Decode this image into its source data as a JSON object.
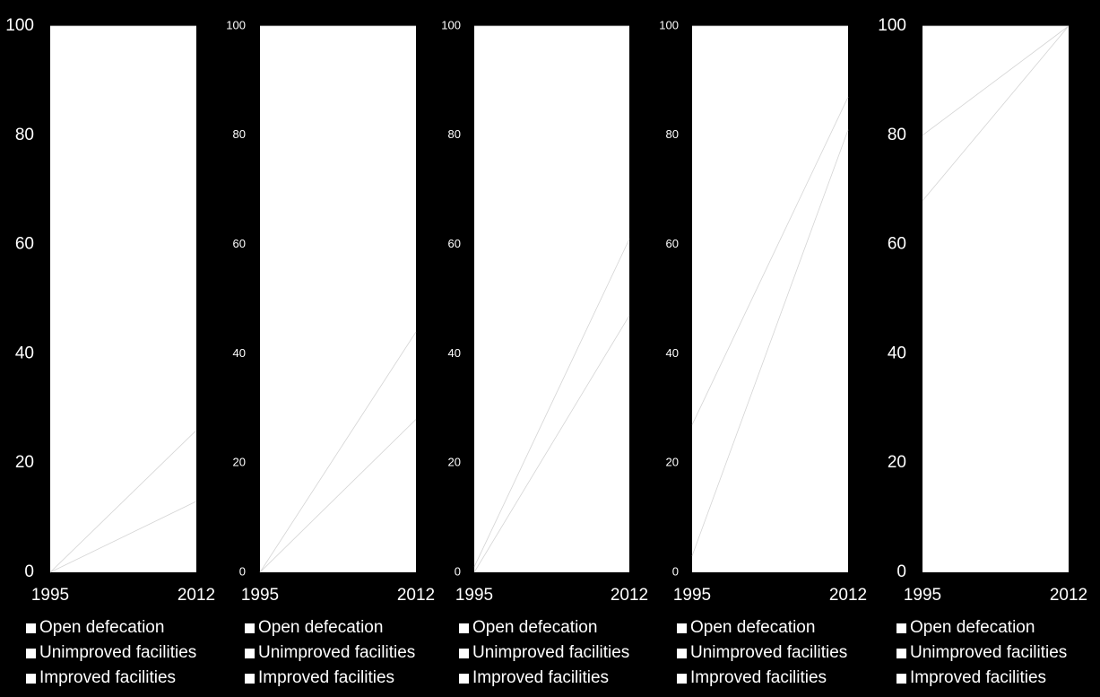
{
  "chart_data": [
    {
      "type": "area",
      "x": [
        "1995",
        "2012"
      ],
      "ylim": [
        0,
        100
      ],
      "yticks": [
        "0",
        "20",
        "40",
        "60",
        "80",
        "100"
      ],
      "series": [
        {
          "name": "Open defecation",
          "values": [
            0,
            13
          ]
        },
        {
          "name": "Unimproved facilities",
          "values": [
            0,
            26
          ]
        },
        {
          "name": "Improved facilities",
          "values": [
            100,
            100
          ]
        }
      ]
    },
    {
      "type": "area",
      "x": [
        "1995",
        "2012"
      ],
      "ylim": [
        0,
        100
      ],
      "yticks": [
        "0",
        "20",
        "40",
        "60",
        "80",
        "100"
      ],
      "series": [
        {
          "name": "Open defecation",
          "values": [
            0,
            28
          ]
        },
        {
          "name": "Unimproved facilities",
          "values": [
            0,
            44
          ]
        },
        {
          "name": "Improved facilities",
          "values": [
            100,
            100
          ]
        }
      ]
    },
    {
      "type": "area",
      "x": [
        "1995",
        "2012"
      ],
      "ylim": [
        0,
        100
      ],
      "yticks": [
        "0",
        "20",
        "40",
        "60",
        "80",
        "100"
      ],
      "series": [
        {
          "name": "Open defecation",
          "values": [
            0,
            47
          ]
        },
        {
          "name": "Unimproved facilities",
          "values": [
            1,
            61
          ]
        },
        {
          "name": "Improved facilities",
          "values": [
            100,
            100
          ]
        }
      ]
    },
    {
      "type": "area",
      "x": [
        "1995",
        "2012"
      ],
      "ylim": [
        0,
        100
      ],
      "yticks": [
        "0",
        "20",
        "40",
        "60",
        "80",
        "100"
      ],
      "series": [
        {
          "name": "Open defecation",
          "values": [
            3,
            81
          ]
        },
        {
          "name": "Unimproved facilities",
          "values": [
            27,
            87
          ]
        },
        {
          "name": "Improved facilities",
          "values": [
            100,
            100
          ]
        }
      ]
    },
    {
      "type": "area",
      "x": [
        "1995",
        "2012"
      ],
      "ylim": [
        0,
        100
      ],
      "yticks": [
        "0",
        "20",
        "40",
        "60",
        "80",
        "100"
      ],
      "series": [
        {
          "name": "Open defecation",
          "values": [
            68,
            100
          ]
        },
        {
          "name": "Unimproved facilities",
          "values": [
            80,
            100
          ]
        },
        {
          "name": "Improved facilities",
          "values": [
            100,
            100
          ]
        }
      ]
    }
  ]
}
